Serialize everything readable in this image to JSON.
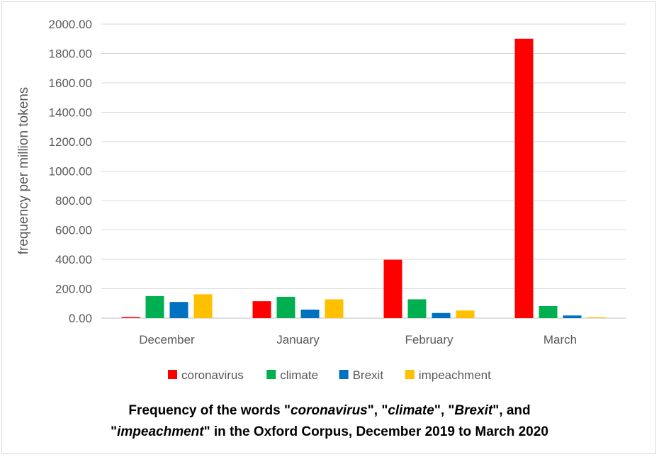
{
  "chart_data": {
    "type": "bar",
    "categories": [
      "December",
      "January",
      "February",
      "March"
    ],
    "series": [
      {
        "name": "coronavirus",
        "color": "#ff0000",
        "values": [
          7,
          115,
          397,
          1900
        ]
      },
      {
        "name": "climate",
        "color": "#00b050",
        "values": [
          150,
          145,
          128,
          82
        ]
      },
      {
        "name": "Brexit",
        "color": "#0070c0",
        "values": [
          110,
          58,
          35,
          18
        ]
      },
      {
        "name": "impeachment",
        "color": "#ffc000",
        "values": [
          162,
          128,
          52,
          6
        ]
      }
    ],
    "ylabel": "frequency per million tokens",
    "ylim": [
      0,
      2000
    ],
    "yticks": [
      "0.00",
      "200.00",
      "400.00",
      "600.00",
      "800.00",
      "1000.00",
      "1200.00",
      "1400.00",
      "1600.00",
      "1800.00",
      "2000.00"
    ],
    "grid": true,
    "legend_position": "bottom"
  },
  "caption": {
    "p1": "Frequency of the words \"",
    "w1": "coronavirus",
    "p2": "\", \"",
    "w2": "climate",
    "p3": "\", \"",
    "w3": "Brexit",
    "p4": "\", and",
    "p5": "\"",
    "w4": "impeachment",
    "p6": "\" in the Oxford Corpus,  December 2019 to March 2020"
  }
}
